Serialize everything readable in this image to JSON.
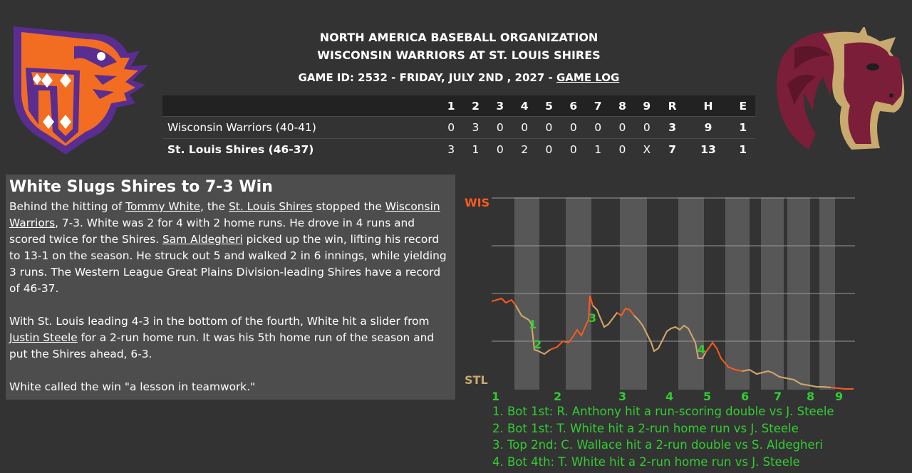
{
  "header": {
    "org": "NORTH AMERICA BASEBALL ORGANIZATION",
    "matchup": "WISCONSIN WARRIORS AT ST. LOUIS SHIRES",
    "game_info": "GAME ID: 2532 - FRIDAY, JULY 2ND , 2027 - ",
    "game_log_link": "GAME LOG"
  },
  "logos": {
    "away": {
      "icon": "warriors-eagle-logo",
      "colors": [
        "#f26d21",
        "#5a2d91"
      ]
    },
    "home": {
      "icon": "shires-horse-logo",
      "colors": [
        "#7b1e3a",
        "#c8a96e"
      ]
    }
  },
  "boxscore": {
    "columns": [
      "1",
      "2",
      "3",
      "4",
      "5",
      "6",
      "7",
      "8",
      "9",
      "R",
      "H",
      "E"
    ],
    "rows": [
      {
        "team": "Wisconsin Warriors (40-41)",
        "innings": [
          "0",
          "3",
          "0",
          "0",
          "0",
          "0",
          "0",
          "0",
          "0"
        ],
        "r": "3",
        "h": "9",
        "e": "1"
      },
      {
        "team": "St. Louis Shires (46-37)",
        "innings": [
          "3",
          "1",
          "0",
          "2",
          "0",
          "0",
          "1",
          "0",
          "X"
        ],
        "r": "7",
        "h": "13",
        "e": "1"
      }
    ]
  },
  "recap": {
    "title": "White Slugs Shires to 7-3 Win",
    "p1": {
      "t1": "Behind the hitting of ",
      "l1": "Tommy White",
      "t2": ", the ",
      "l2": "St. Louis Shires",
      "t3": " stopped the ",
      "l3": "Wisconsin Warriors",
      "t4": ", 7-3. White was 2 for 4 with 2 home runs. He drove in 4 runs and scored twice for the Shires. ",
      "l4": "Sam Aldegheri",
      "t5": " picked up the win, lifting his record to 13-1 on the season. He struck out 5 and walked 2 in 6 innings, while yielding 3 runs. The Western League Great Plains Division-leading Shires have a record of 46-37."
    },
    "p2": {
      "t1": "With St. Louis leading 4-3 in the bottom of the fourth, White hit a slider from ",
      "l1": "Justin Steele",
      "t2": " for a 2-run home run. It was his 5th home run of the season and put the Shires ahead, 6-3."
    },
    "p3": "White called the win \"a lesson in teamwork.\""
  },
  "win_prob": {
    "top_label": "WIS",
    "bottom_label": "STL",
    "top_color": "#ff5a1f",
    "bottom_color": "#c8a96e",
    "innings": [
      "1",
      "2",
      "3",
      "4",
      "5",
      "6",
      "7",
      "8",
      "9"
    ],
    "markers": [
      "1",
      "2",
      "3",
      "4"
    ],
    "notes": [
      "1. Bot 1st: R. Anthony hit a run-scoring double vs J. Steele",
      "2. Bot 1st: T. White hit a 2-run home run vs J. Steele",
      "3. Top 2nd: C. Wallace hit a 2-run double vs S. Aldegheri",
      "4. Bot 4th: T. White hit a 2-run home run vs J. Steele"
    ]
  }
}
